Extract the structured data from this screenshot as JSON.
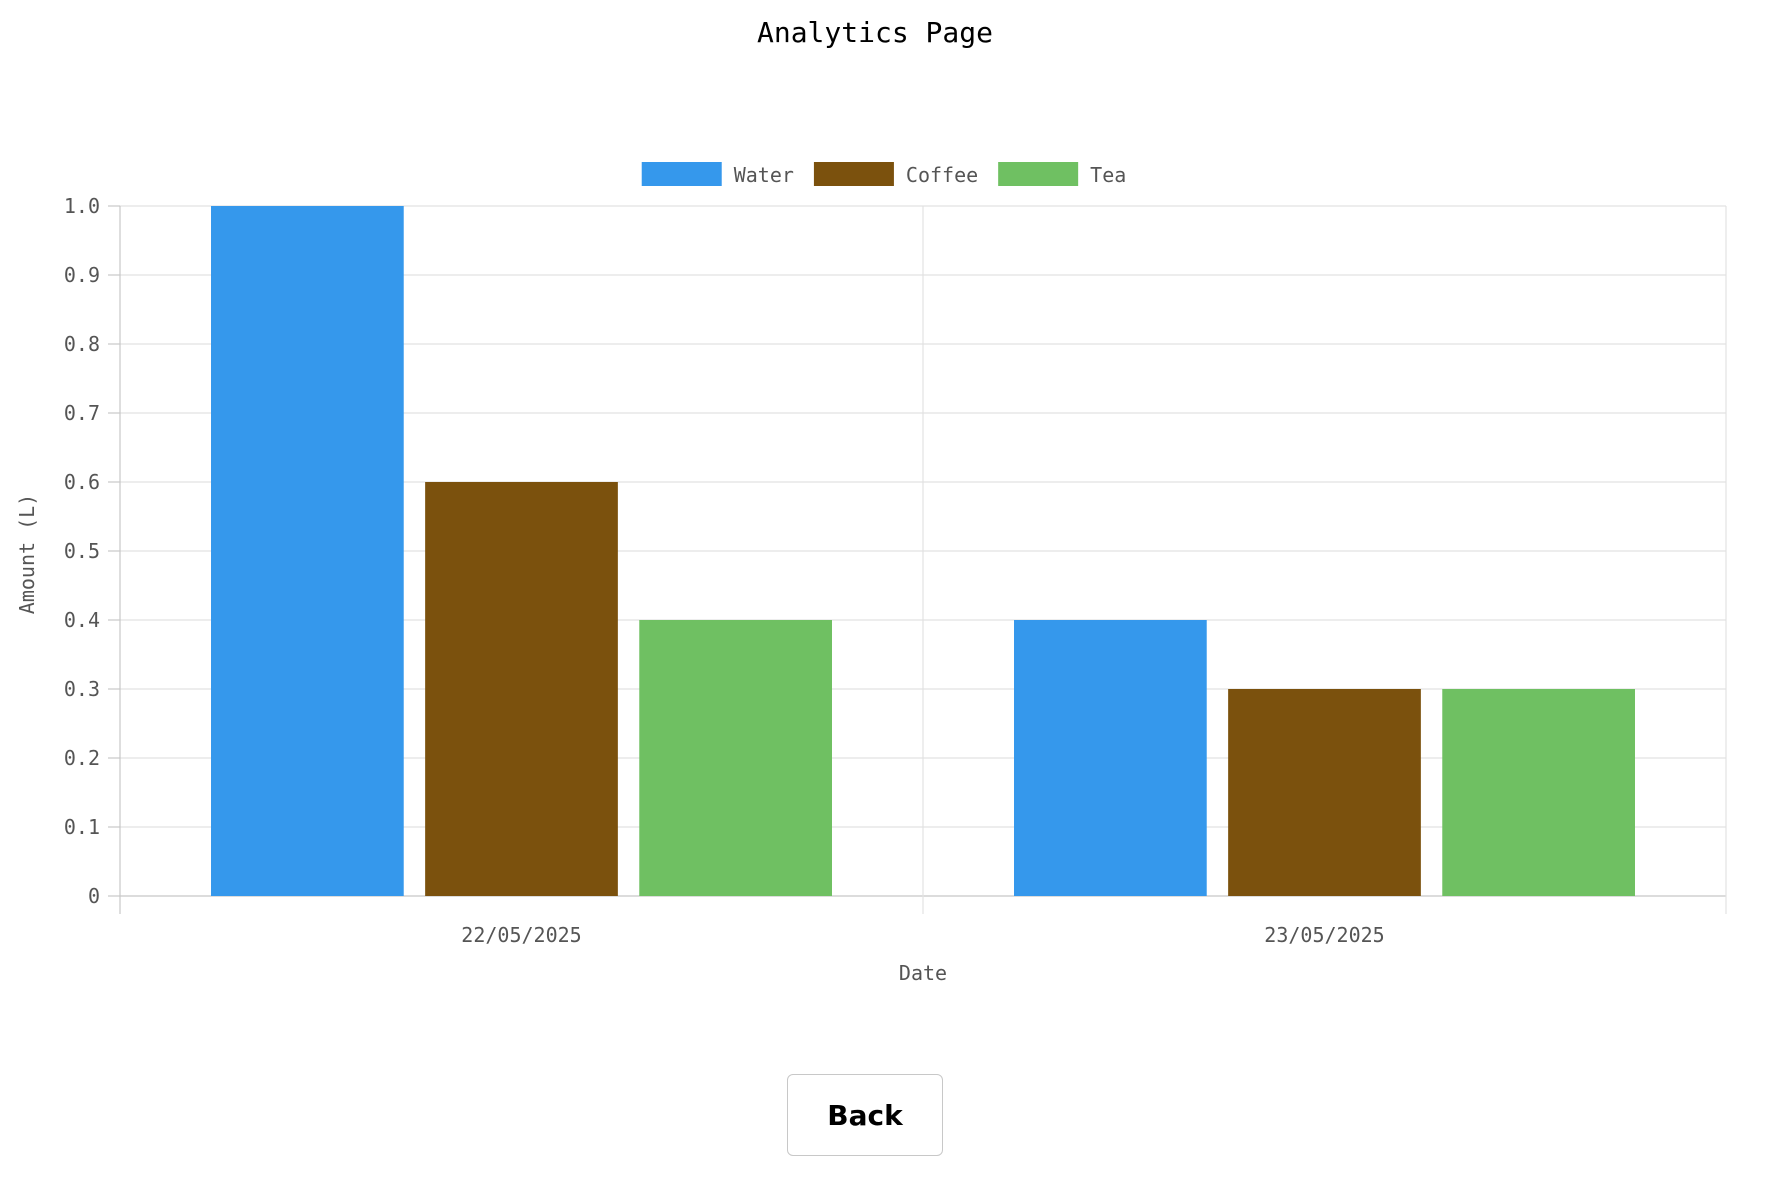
{
  "page": {
    "title": "Analytics Page"
  },
  "back_button": {
    "label": "Back"
  },
  "chart_data": {
    "type": "bar",
    "title": "",
    "xlabel": "Date",
    "ylabel": "Amount (L)",
    "categories": [
      "22/05/2025",
      "23/05/2025"
    ],
    "series": [
      {
        "name": "Water",
        "color": "#3598ec",
        "values": [
          1.0,
          0.4
        ]
      },
      {
        "name": "Coffee",
        "color": "#7b510d",
        "values": [
          0.6,
          0.3
        ]
      },
      {
        "name": "Tea",
        "color": "#6fc062",
        "values": [
          0.4,
          0.3
        ]
      }
    ],
    "ylim": [
      0,
      1.0
    ],
    "yticks": [
      0,
      0.1,
      0.2,
      0.3,
      0.4,
      0.5,
      0.6,
      0.7,
      0.8,
      0.9,
      1.0
    ],
    "ytick_labels": [
      "0",
      "0.1",
      "0.2",
      "0.3",
      "0.4",
      "0.5",
      "0.6",
      "0.7",
      "0.8",
      "0.9",
      "1.0"
    ],
    "grid": true,
    "legend_position": "top-center"
  }
}
